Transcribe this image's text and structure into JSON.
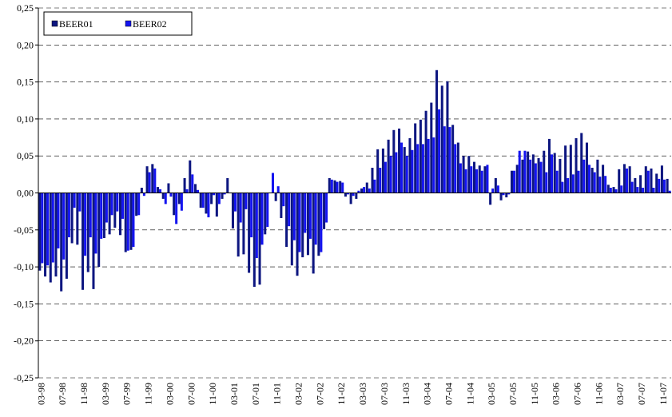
{
  "chart_data": {
    "type": "bar",
    "categories": [
      "03-98",
      null,
      null,
      null,
      "07-98",
      null,
      null,
      null,
      "11-98",
      null,
      null,
      null,
      "03-99",
      null,
      null,
      null,
      "07-99",
      null,
      null,
      null,
      "11-99",
      null,
      null,
      null,
      "03-00",
      null,
      null,
      null,
      "07-00",
      null,
      null,
      null,
      "11-00",
      null,
      null,
      null,
      "03-01",
      null,
      null,
      null,
      "07-01",
      null,
      null,
      null,
      "11-01",
      null,
      null,
      null,
      "03-02",
      null,
      null,
      null,
      "07-02",
      null,
      null,
      null,
      "11-02",
      null,
      null,
      null,
      "03-03",
      null,
      null,
      null,
      "07-03",
      null,
      null,
      null,
      "11-03",
      null,
      null,
      null,
      "03-04",
      null,
      null,
      null,
      "07-04",
      null,
      null,
      null,
      "11-04",
      null,
      null,
      null,
      "03-05",
      null,
      null,
      null,
      "07-05",
      null,
      null,
      null,
      "11-05",
      null,
      null,
      null,
      "03-06",
      null,
      null,
      null,
      "07-06",
      null,
      null,
      null,
      "11-06",
      null,
      null,
      null,
      "03-07",
      null,
      null,
      null,
      "07-07",
      null,
      null,
      null,
      "11-07",
      null
    ],
    "series": [
      {
        "name": "BEER01",
        "color": "#0d1680",
        "values": [
          -0.105,
          -0.113,
          -0.121,
          -0.113,
          -0.133,
          -0.116,
          -0.068,
          -0.07,
          -0.131,
          -0.107,
          -0.13,
          -0.1,
          -0.061,
          -0.056,
          -0.047,
          -0.057,
          -0.08,
          -0.077,
          -0.031,
          0.007,
          0.036,
          0.039,
          0.008,
          -0.008,
          0.013,
          -0.03,
          -0.015,
          0.02,
          0.044,
          0.012,
          -0.02,
          -0.028,
          -0.015,
          -0.032,
          -0.008,
          0.02,
          -0.048,
          -0.086,
          -0.083,
          -0.108,
          -0.127,
          -0.124,
          -0.056,
          0.0,
          -0.011,
          -0.034,
          -0.073,
          -0.098,
          -0.112,
          -0.087,
          -0.084,
          -0.109,
          -0.085,
          -0.049,
          0.02,
          0.017,
          0.016,
          -0.005,
          -0.015,
          -0.008,
          0.006,
          0.014,
          0.034,
          0.059,
          0.06,
          0.072,
          0.085,
          0.087,
          0.062,
          0.074,
          0.094,
          0.099,
          0.111,
          0.122,
          0.166,
          0.145,
          0.151,
          0.092,
          0.068,
          0.05,
          0.05,
          0.042,
          0.037,
          0.036,
          -0.016,
          0.02,
          -0.01,
          -0.006,
          0.03,
          0.038,
          0.045,
          0.056,
          0.052,
          0.047,
          0.057,
          0.073,
          0.054,
          0.046,
          0.064,
          0.065,
          0.074,
          0.081,
          0.068,
          0.034,
          0.045,
          0.038,
          0.011,
          0.008,
          0.032,
          0.039,
          0.036,
          0.02,
          0.024,
          0.036,
          0.033,
          0.026,
          0.037,
          0.019
        ]
      },
      {
        "name": "BEER02",
        "color": "#1414f0",
        "values": [
          -0.095,
          -0.098,
          -0.094,
          -0.075,
          -0.09,
          -0.06,
          -0.02,
          -0.025,
          -0.085,
          -0.06,
          -0.082,
          -0.062,
          -0.04,
          -0.03,
          -0.025,
          -0.035,
          -0.078,
          -0.073,
          -0.03,
          -0.004,
          0.028,
          0.033,
          0.005,
          -0.015,
          -0.005,
          -0.042,
          -0.024,
          0.005,
          0.025,
          0.004,
          -0.02,
          -0.033,
          -0.003,
          -0.015,
          -0.002,
          0.0,
          -0.025,
          -0.04,
          -0.022,
          -0.06,
          -0.088,
          -0.07,
          -0.046,
          0.027,
          0.009,
          -0.018,
          -0.045,
          -0.064,
          -0.08,
          -0.054,
          -0.062,
          -0.07,
          -0.08,
          -0.04,
          0.018,
          0.015,
          0.014,
          -0.002,
          -0.004,
          0.003,
          0.008,
          0.006,
          0.018,
          0.034,
          0.042,
          0.05,
          0.055,
          0.068,
          0.05,
          0.058,
          0.066,
          0.066,
          0.073,
          0.075,
          0.113,
          0.09,
          0.089,
          0.066,
          0.04,
          0.032,
          0.036,
          0.032,
          0.03,
          0.038,
          0.006,
          0.01,
          -0.003,
          -0.002,
          0.03,
          0.057,
          0.057,
          0.045,
          0.04,
          0.042,
          0.028,
          0.052,
          0.03,
          0.015,
          0.02,
          0.025,
          0.03,
          0.045,
          0.038,
          0.028,
          0.022,
          0.023,
          0.007,
          0.005,
          0.01,
          0.033,
          0.015,
          0.008,
          0.007,
          0.03,
          0.007,
          0.019,
          0.018,
          0.003
        ]
      }
    ],
    "ylim": [
      -0.25,
      0.25
    ],
    "yticks": [
      {
        "value": -0.25,
        "label": "-0,25"
      },
      {
        "value": -0.2,
        "label": "-0,20"
      },
      {
        "value": -0.15,
        "label": "-0,15"
      },
      {
        "value": -0.1,
        "label": "-0,10"
      },
      {
        "value": -0.05,
        "label": "-0,05"
      },
      {
        "value": 0,
        "label": "0,00"
      },
      {
        "value": 0.05,
        "label": "0,05"
      },
      {
        "value": 0.1,
        "label": "0,10"
      },
      {
        "value": 0.15,
        "label": "0,15"
      },
      {
        "value": 0.2,
        "label": "0,20"
      },
      {
        "value": 0.25,
        "label": "0,25"
      }
    ],
    "grid": true,
    "legend": "top-left"
  }
}
